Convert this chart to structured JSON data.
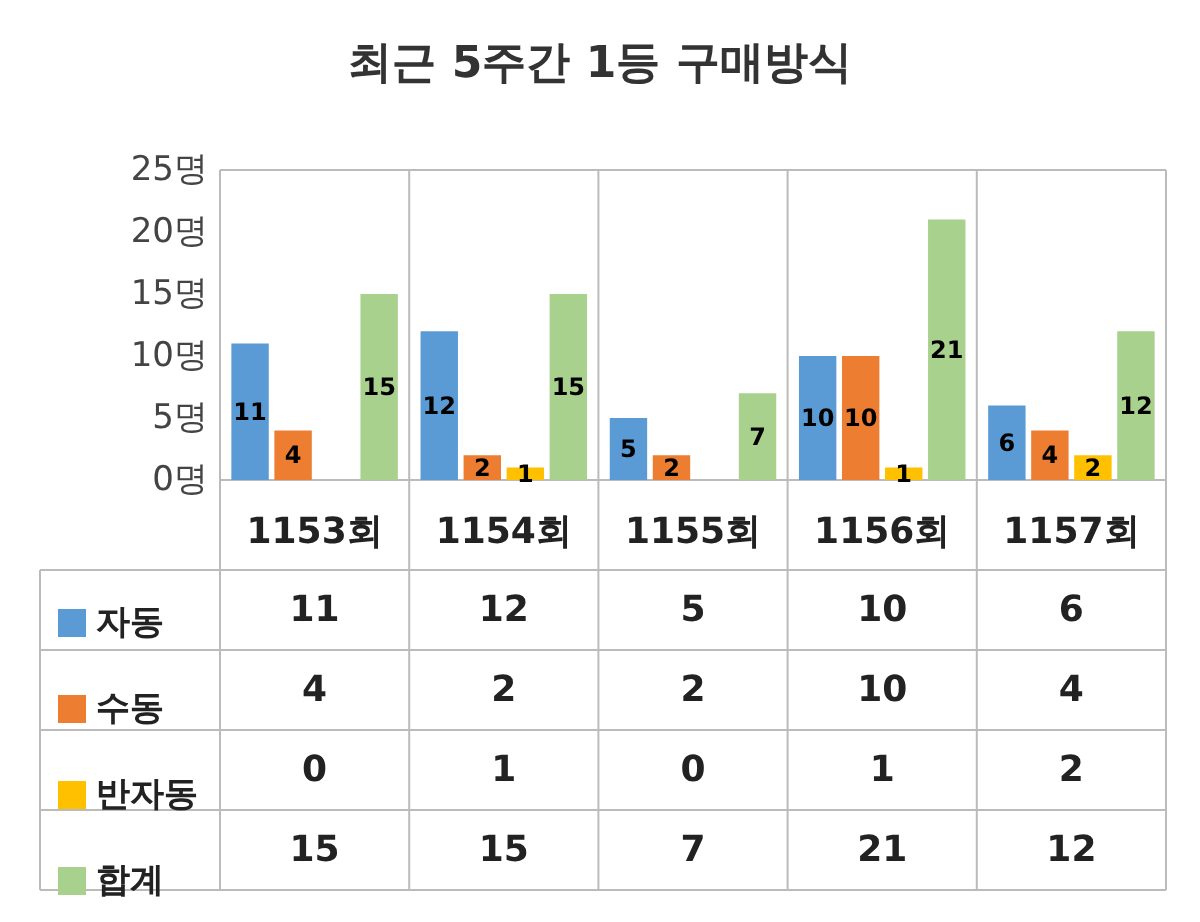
{
  "chart_data": {
    "type": "bar",
    "title": "최근 5주간 1등 구매방식",
    "categories": [
      "1153회",
      "1154회",
      "1155회",
      "1156회",
      "1157회"
    ],
    "series": [
      {
        "name": "자동",
        "color": "#5b9bd5",
        "values": [
          11,
          12,
          5,
          10,
          6
        ],
        "value_labels": [
          "11",
          "12",
          "5",
          "10",
          "6"
        ]
      },
      {
        "name": "수동",
        "color": "#ed7d31",
        "values": [
          4,
          2,
          2,
          10,
          4
        ],
        "value_labels": [
          "4",
          "2",
          "2",
          "10",
          "4"
        ]
      },
      {
        "name": "반자동",
        "color": "#ffc000",
        "values": [
          0,
          1,
          0,
          1,
          2
        ],
        "value_labels": [
          "0",
          "1",
          "0",
          "1",
          "2"
        ]
      },
      {
        "name": "합계",
        "color": "#a9d18e",
        "values": [
          15,
          15,
          7,
          21,
          12
        ],
        "value_labels": [
          "15",
          "15",
          "7",
          "21",
          "12"
        ]
      }
    ],
    "ylim": [
      0,
      25
    ],
    "yticks": [
      {
        "value": 0,
        "label": "0명"
      },
      {
        "value": 5,
        "label": "5명"
      },
      {
        "value": 10,
        "label": "10명"
      },
      {
        "value": 15,
        "label": "15명"
      },
      {
        "value": 20,
        "label": "20명"
      },
      {
        "value": 25,
        "label": "25명"
      }
    ],
    "grid": false,
    "legend": "bottom left"
  }
}
